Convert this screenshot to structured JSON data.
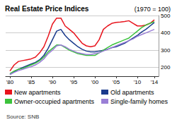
{
  "chart_data": {
    "type": "line",
    "title": "Real Estate Price Indices",
    "subtitle": "(1970 = 100)",
    "annotations": [
      "Source: SNB"
    ],
    "x": [
      1980,
      1981,
      1982,
      1983,
      1984,
      1985,
      1986,
      1987,
      1988,
      1989,
      1990,
      1991,
      1992,
      1993,
      1994,
      1995,
      1996,
      1997,
      1998,
      1999,
      2000,
      2001,
      2002,
      2003,
      2004,
      2005,
      2006,
      2007,
      2008,
      2009,
      2010,
      2011,
      2012,
      2013,
      2014
    ],
    "series": [
      {
        "name": "New apartments",
        "color": "#e8141d",
        "values": [
          180,
          215,
          235,
          240,
          245,
          250,
          260,
          285,
          320,
          380,
          450,
          485,
          485,
          440,
          420,
          400,
          370,
          340,
          325,
          320,
          325,
          360,
          420,
          440,
          455,
          460,
          462,
          465,
          470,
          455,
          440,
          440,
          445,
          455,
          475
        ]
      },
      {
        "name": "Old apartments",
        "color": "#1a3a8c",
        "values": [
          160,
          175,
          190,
          200,
          210,
          220,
          230,
          245,
          270,
          310,
          360,
          410,
          420,
          385,
          360,
          340,
          320,
          305,
          295,
          290,
          290,
          295,
          300,
          305,
          315,
          320,
          330,
          340,
          355,
          370,
          385,
          405,
          420,
          440,
          460
        ]
      },
      {
        "name": "Owner-occupied apartments",
        "color": "#3cc23c",
        "values": [
          165,
          180,
          190,
          195,
          205,
          215,
          225,
          240,
          260,
          290,
          310,
          330,
          330,
          315,
          300,
          290,
          280,
          275,
          270,
          270,
          270,
          285,
          300,
          315,
          330,
          340,
          350,
          360,
          370,
          390,
          410,
          430,
          445,
          455,
          465
        ]
      },
      {
        "name": "Single-family homes",
        "color": "#9a7fd6",
        "values": [
          160,
          172,
          182,
          190,
          198,
          205,
          215,
          230,
          250,
          280,
          300,
          325,
          330,
          320,
          305,
          295,
          285,
          280,
          275,
          275,
          280,
          285,
          295,
          305,
          315,
          325,
          335,
          345,
          355,
          365,
          380,
          390,
          400,
          410,
          420
        ]
      }
    ],
    "xlim": [
      1979,
      2015
    ],
    "xticks": [
      {
        "value": 1980,
        "label": "'80"
      },
      {
        "value": 1985,
        "label": "'85"
      },
      {
        "value": 1990,
        "label": "'90"
      },
      {
        "value": 1995,
        "label": "'95"
      },
      {
        "value": 2000,
        "label": "'00"
      },
      {
        "value": 2005,
        "label": "'05"
      },
      {
        "value": 2010,
        "label": "'10"
      },
      {
        "value": 2014,
        "label": "'14"
      }
    ],
    "ylim": [
      150,
      500
    ],
    "yticks": [
      200,
      300,
      400,
      500
    ],
    "grid": true
  }
}
